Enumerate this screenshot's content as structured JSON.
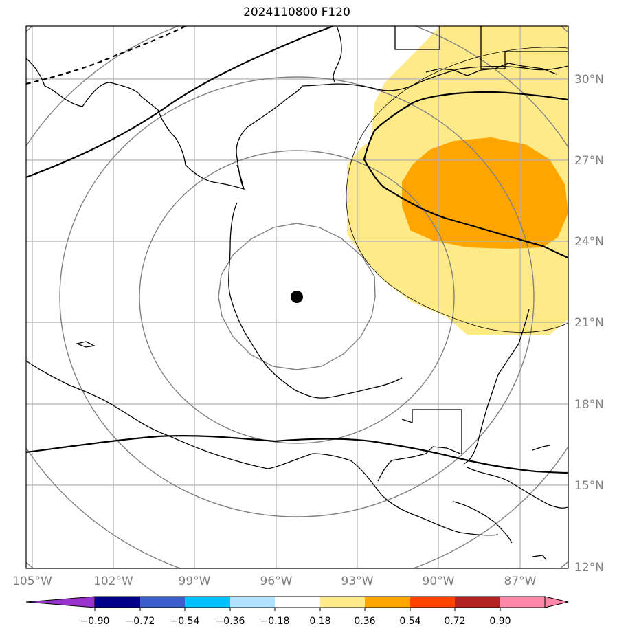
{
  "title": "2024110800 F120",
  "map": {
    "lon_range": [
      -105.2,
      -85.2
    ],
    "lat_range": [
      12,
      32
    ],
    "lat_labels": [
      "30°N",
      "27°N",
      "24°N",
      "21°N",
      "18°N",
      "15°N",
      "12°N"
    ],
    "lat_values": [
      30,
      27,
      24,
      21,
      18,
      15,
      12
    ],
    "lon_labels": [
      "105°W",
      "102°W",
      "99°W",
      "96°W",
      "93°W",
      "90°W",
      "87°W"
    ],
    "lon_values": [
      -105,
      -102,
      -99,
      -96,
      -93,
      -90,
      -87
    ],
    "center_marker": {
      "lon": -95.2,
      "lat": 21.9
    },
    "colors": {
      "shade_light": "#ffea8a",
      "shade_dark": "#ffa500",
      "grid": "#b0b0b0",
      "range_rings": "#808080",
      "coast": "#000000"
    }
  },
  "colorbar": {
    "tick_labels": [
      "−0.90",
      "−0.72",
      "−0.54",
      "−0.36",
      "−0.18",
      "0.18",
      "0.36",
      "0.54",
      "0.72",
      "0.90"
    ],
    "colors": [
      "#9932cc",
      "#00008b",
      "#3a5fcd",
      "#00bfff",
      "#b0e2ff",
      "#ffffff",
      "#ffea8a",
      "#ffa500",
      "#ff4500",
      "#b22222",
      "#ff88aa",
      "#ff88aa"
    ]
  }
}
